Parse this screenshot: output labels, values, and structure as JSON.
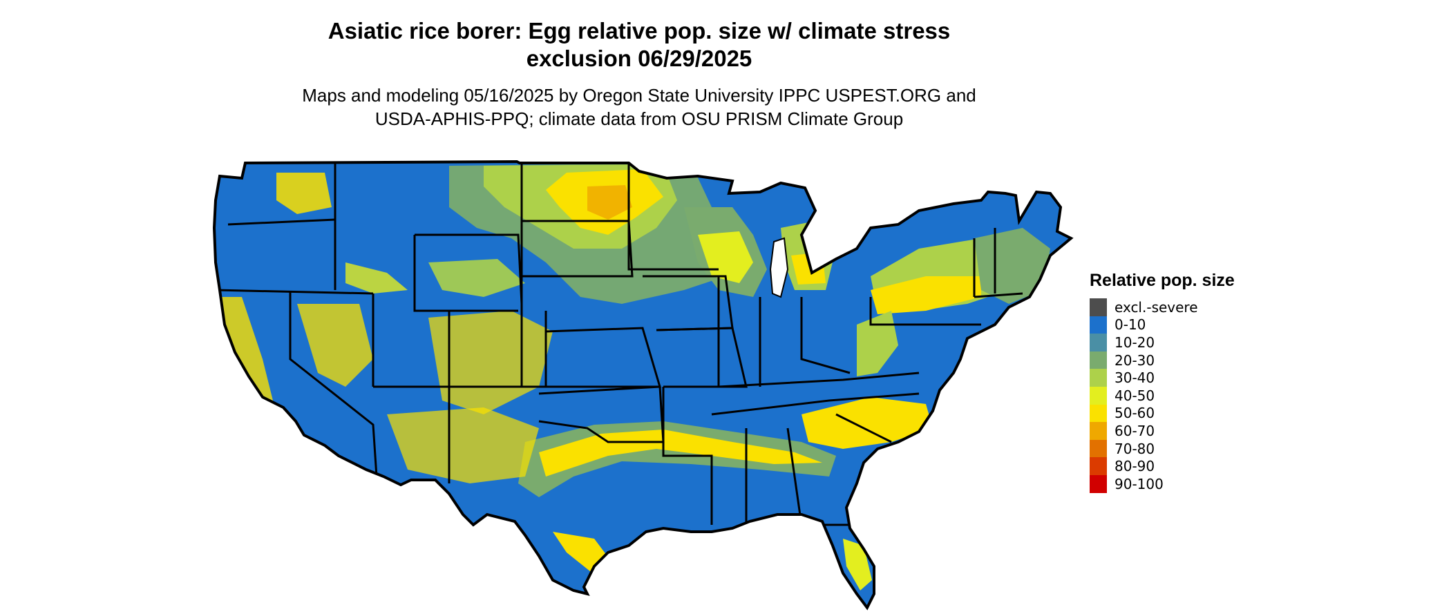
{
  "title_lines": [
    "Asiatic rice borer: Egg relative pop. size w/ climate stress",
    "exclusion 06/29/2025"
  ],
  "subtitle_lines": [
    "Maps and modeling 05/16/2025 by Oregon State University IPPC USPEST.ORG and",
    "USDA-APHIS-PPQ; climate data from OSU PRISM Climate Group"
  ],
  "legend": {
    "title": "Relative pop. size",
    "items": [
      {
        "label": "excl.-severe",
        "color": "#4d4d4d"
      },
      {
        "label": "0-10",
        "color": "#1c71cc"
      },
      {
        "label": "10-20",
        "color": "#4a8fa5"
      },
      {
        "label": "20-30",
        "color": "#7aab6e"
      },
      {
        "label": "30-40",
        "color": "#add14a"
      },
      {
        "label": "40-50",
        "color": "#e3ee1f"
      },
      {
        "label": "50-60",
        "color": "#fae100"
      },
      {
        "label": "60-70",
        "color": "#efa800"
      },
      {
        "label": "70-80",
        "color": "#e27100"
      },
      {
        "label": "80-90",
        "color": "#db3b00"
      },
      {
        "label": "90-100",
        "color": "#d10000"
      }
    ]
  },
  "map": {
    "region": "contiguous United States",
    "state_borders_color": "#000000",
    "base_color": "#1c71cc"
  }
}
